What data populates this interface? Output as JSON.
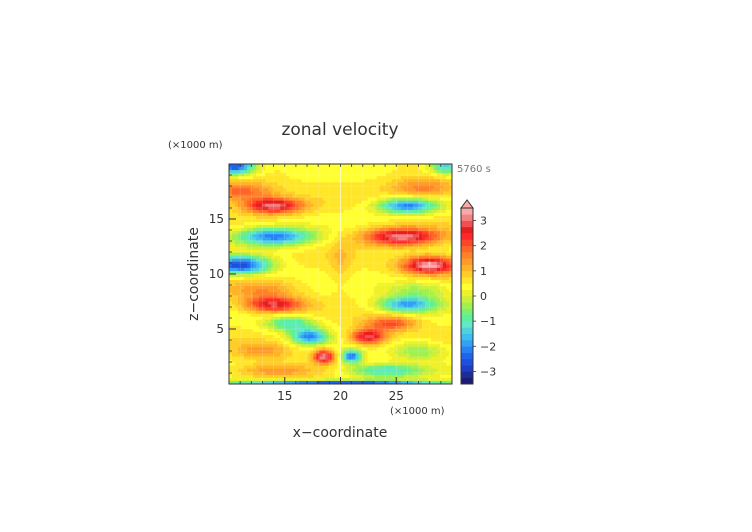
{
  "chart_data": {
    "type": "heatmap",
    "title": "zonal velocity",
    "xlabel": "x−coordinate",
    "ylabel": "z−coordinate",
    "x_unit": "(×1000 m)",
    "z_unit": "(×1000 m)",
    "time_label": "5760 s",
    "xlim": [
      10,
      30
    ],
    "zlim": [
      0,
      20
    ],
    "x_ticks": [
      15,
      20,
      25
    ],
    "z_ticks": [
      5,
      10,
      15
    ],
    "colorbar": {
      "levels": [
        -3.5,
        -3.25,
        -3,
        -2.75,
        -2.5,
        -2.25,
        -2,
        -1.75,
        -1.5,
        -1.25,
        -1,
        -0.75,
        -0.5,
        -0.25,
        0,
        0.25,
        0.5,
        0.75,
        1,
        1.25,
        1.5,
        1.75,
        2,
        2.25,
        2.5,
        2.75,
        3,
        3.25,
        3.5
      ],
      "colors": [
        "#1c1c78",
        "#1c2d96",
        "#1e3cc8",
        "#1e50dc",
        "#1e64f0",
        "#2882f5",
        "#32a0f5",
        "#3cbef0",
        "#50d2dc",
        "#64e6c8",
        "#5af0a0",
        "#78f078",
        "#a0f050",
        "#c8f03c",
        "#f0f028",
        "#ffff32",
        "#ffe628",
        "#ffcd28",
        "#ffb428",
        "#ff9b28",
        "#ff8228",
        "#ff6428",
        "#ff4628",
        "#ff2828",
        "#e61e1e",
        "#f05050",
        "#f58282",
        "#faaaaa"
      ],
      "tick_labels": [
        "−3",
        "−2",
        "−1",
        "0",
        "1",
        "2",
        "3"
      ],
      "tick_values": [
        -3,
        -2,
        -1,
        0,
        1,
        2,
        3
      ],
      "extend": "max"
    },
    "field_features": [
      {
        "x": 10.5,
        "z": 19.8,
        "value": -3.2,
        "sx": 1.8,
        "sz": 0.8
      },
      {
        "x": 29.5,
        "z": 19.8,
        "value": -2.0,
        "sx": 1.5,
        "sz": 0.8
      },
      {
        "x": 11.0,
        "z": 17.5,
        "value": 1.5,
        "sx": 3.0,
        "sz": 0.9
      },
      {
        "x": 27.5,
        "z": 17.8,
        "value": 1.2,
        "sx": 3.0,
        "sz": 0.9
      },
      {
        "x": 14.0,
        "z": 16.2,
        "value": 2.6,
        "sx": 2.6,
        "sz": 0.7
      },
      {
        "x": 26.0,
        "z": 16.2,
        "value": -2.6,
        "sx": 2.6,
        "sz": 0.7
      },
      {
        "x": 14.0,
        "z": 13.4,
        "value": -2.7,
        "sx": 3.4,
        "sz": 0.8
      },
      {
        "x": 25.5,
        "z": 13.4,
        "value": 2.7,
        "sx": 3.4,
        "sz": 0.8
      },
      {
        "x": 11.0,
        "z": 10.8,
        "value": -3.2,
        "sx": 2.6,
        "sz": 0.8
      },
      {
        "x": 28.0,
        "z": 10.8,
        "value": 3.0,
        "sx": 2.4,
        "sz": 0.8
      },
      {
        "x": 13.0,
        "z": 8.5,
        "value": 0.9,
        "sx": 3.0,
        "sz": 0.9
      },
      {
        "x": 27.0,
        "z": 8.5,
        "value": -0.9,
        "sx": 3.0,
        "sz": 0.9
      },
      {
        "x": 14.0,
        "z": 7.2,
        "value": 2.3,
        "sx": 2.6,
        "sz": 0.7
      },
      {
        "x": 26.0,
        "z": 7.2,
        "value": -2.3,
        "sx": 2.6,
        "sz": 0.7
      },
      {
        "x": 15.5,
        "z": 5.5,
        "value": -1.6,
        "sx": 2.2,
        "sz": 0.7
      },
      {
        "x": 24.5,
        "z": 5.5,
        "value": 1.6,
        "sx": 2.2,
        "sz": 0.7
      },
      {
        "x": 17.2,
        "z": 4.3,
        "value": -2.5,
        "sx": 1.6,
        "sz": 0.7
      },
      {
        "x": 22.5,
        "z": 4.3,
        "value": 2.5,
        "sx": 1.6,
        "sz": 0.7
      },
      {
        "x": 18.5,
        "z": 2.5,
        "value": 2.8,
        "sx": 0.9,
        "sz": 0.6
      },
      {
        "x": 21.0,
        "z": 2.5,
        "value": -2.8,
        "sx": 0.9,
        "sz": 0.6
      },
      {
        "x": 13.0,
        "z": 3.0,
        "value": 0.9,
        "sx": 2.5,
        "sz": 0.8
      },
      {
        "x": 27.0,
        "z": 3.0,
        "value": -1.0,
        "sx": 2.5,
        "sz": 0.8
      },
      {
        "x": 24.0,
        "z": 1.2,
        "value": -1.8,
        "sx": 3.5,
        "sz": 0.6
      },
      {
        "x": 14.0,
        "z": 1.2,
        "value": 1.0,
        "sx": 3.5,
        "sz": 0.6
      },
      {
        "x": 20.0,
        "z": 0.1,
        "value": -3.0,
        "sx": 10.0,
        "sz": 0.25
      },
      {
        "x": 20.0,
        "z": 11.0,
        "value": 0.4,
        "sx": 1.0,
        "sz": 2.5
      }
    ]
  }
}
